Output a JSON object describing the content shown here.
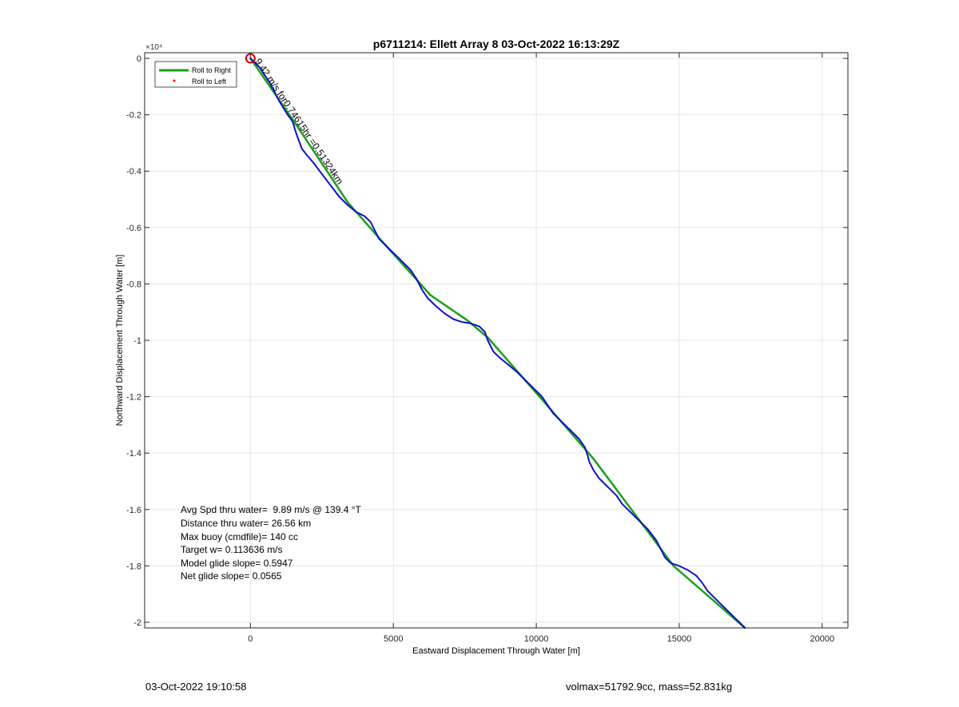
{
  "chart_data": {
    "type": "line",
    "title": "p6711214: Ellett Array 8 03-Oct-2022 16:13:29Z",
    "xlabel": "Eastward Displacement Through Water [m]",
    "ylabel": "Northward Displacement Through Water [m]",
    "y_exponent_label": "×10⁴",
    "y_scale": 10000,
    "xlim": [
      -3700,
      20900
    ],
    "ylim": [
      -20200,
      200
    ],
    "xticks": [
      0,
      5000,
      10000,
      15000,
      20000
    ],
    "xtick_labels": [
      "0",
      "5000",
      "10000",
      "15000",
      "20000"
    ],
    "yticks": [
      0,
      -2000,
      -4000,
      -6000,
      -8000,
      -10000,
      -12000,
      -14000,
      -16000,
      -18000,
      -20000
    ],
    "ytick_labels": [
      "0",
      "-0.2",
      "-0.4",
      "-0.6",
      "-0.8",
      "-1",
      "-1.2",
      "-1.4",
      "-1.6",
      "-1.8",
      "-2"
    ],
    "grid": true,
    "legend_position": "top-left",
    "legend": [
      {
        "label": "Roll to Right",
        "color": "#1aa01a",
        "style": "line"
      },
      {
        "label": "Roll to Left",
        "color": "#ff0000",
        "style": "dot"
      }
    ],
    "series": [
      {
        "name": "Roll to Right",
        "color": "#1aa01a",
        "x": [
          0,
          1500,
          3400,
          4700,
          6300,
          7600,
          8300,
          10200,
          12000,
          14800,
          17300
        ],
        "y": [
          0,
          -2200,
          -5100,
          -6600,
          -8400,
          -9300,
          -9900,
          -12100,
          -14200,
          -18000,
          -20200
        ]
      },
      {
        "color": "#1010c8",
        "x": [
          0,
          300,
          700,
          1000,
          1300,
          1450,
          1500,
          1550,
          1650,
          1800,
          1950,
          2200,
          2500,
          2800,
          3100,
          3400,
          3700,
          4000,
          4200,
          4350,
          4500,
          4700,
          5000,
          5300,
          5600,
          5800,
          6000,
          6200,
          6500,
          6800,
          7100,
          7400,
          7700,
          8000,
          8200,
          8300,
          8400,
          8500,
          8700,
          9000,
          9300,
          9600,
          9900,
          10200,
          10400,
          10600,
          10900,
          11200,
          11500,
          11700,
          11800,
          11850,
          11900,
          12000,
          12200,
          12500,
          12800,
          13000,
          13300,
          13600,
          13900,
          14200,
          14400,
          14500,
          14700,
          15000,
          15300,
          15600,
          15800,
          16000,
          16300,
          16600,
          16900,
          17100,
          17300
        ],
        "y": [
          0,
          -300,
          -900,
          -1500,
          -2000,
          -2200,
          -2300,
          -2500,
          -2800,
          -3200,
          -3400,
          -3700,
          -4100,
          -4500,
          -4900,
          -5200,
          -5450,
          -5600,
          -5800,
          -6100,
          -6400,
          -6600,
          -6900,
          -7200,
          -7500,
          -7800,
          -8200,
          -8500,
          -8800,
          -9050,
          -9250,
          -9350,
          -9400,
          -9500,
          -9700,
          -10000,
          -10200,
          -10400,
          -10600,
          -10850,
          -11100,
          -11400,
          -11700,
          -12000,
          -12300,
          -12600,
          -12900,
          -13200,
          -13500,
          -13800,
          -14100,
          -14300,
          -14400,
          -14600,
          -14900,
          -15200,
          -15500,
          -15800,
          -16100,
          -16400,
          -16700,
          -17100,
          -17500,
          -17700,
          -17900,
          -18000,
          -18150,
          -18350,
          -18600,
          -18900,
          -19200,
          -19500,
          -19800,
          -20000,
          -20200
        ]
      }
    ],
    "start_marker": {
      "x": 0,
      "y": 0,
      "color": "#cc0000"
    },
    "rotated_annotation": {
      "text": "9.42 m/s for0.74615hr =0.51324km",
      "x": 150,
      "y": -100,
      "angle_deg": 56
    },
    "stats": [
      "Avg Spd thru water=  9.89 m/s @ 139.4 °T",
      "Distance thru water= 26.56 km",
      "Max buoy (cmdfile)= 140 cc",
      "Target w= 0.113636 m/s",
      "Model glide slope= 0.5947",
      "Net glide slope= 0.0565"
    ]
  },
  "footer": {
    "left": "03-Oct-2022 19:10:58",
    "right": "volmax=51792.9cc, mass=52.831kg"
  }
}
